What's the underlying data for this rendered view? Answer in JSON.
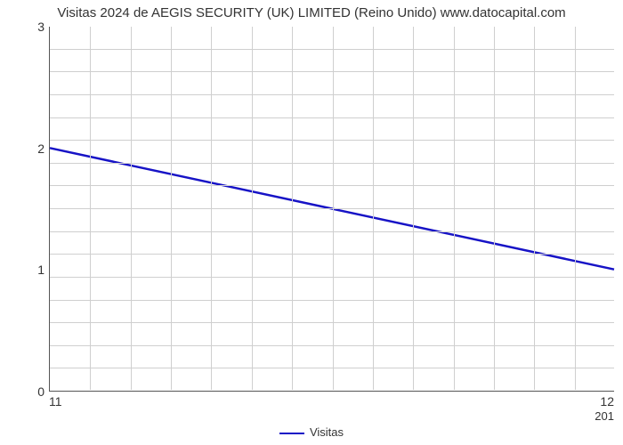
{
  "chart": {
    "type": "line",
    "title": "Visitas 2024 de AEGIS SECURITY (UK) LIMITED (Reino Unido) www.datocapital.com",
    "title_fontsize": 15,
    "title_color": "#333333",
    "background_color": "#ffffff",
    "plot_border_color": "#555555",
    "grid_color": "#cfcfcf",
    "axis_label_fontsize": 14,
    "axis_label_color": "#333333",
    "xlim": [
      11,
      12
    ],
    "ylim": [
      0,
      3
    ],
    "yticks": [
      0,
      1,
      2,
      3
    ],
    "xticks": [
      11,
      12
    ],
    "x_subtick_label": "201",
    "x_minor_grid_count": 13,
    "y_minor_grid_count": 15,
    "series": {
      "name": "Visitas",
      "color": "#1713c6",
      "line_width": 2.5,
      "x": [
        11,
        12
      ],
      "y": [
        2,
        1
      ]
    },
    "legend": {
      "label": "Visitas",
      "position": "bottom-center"
    }
  }
}
